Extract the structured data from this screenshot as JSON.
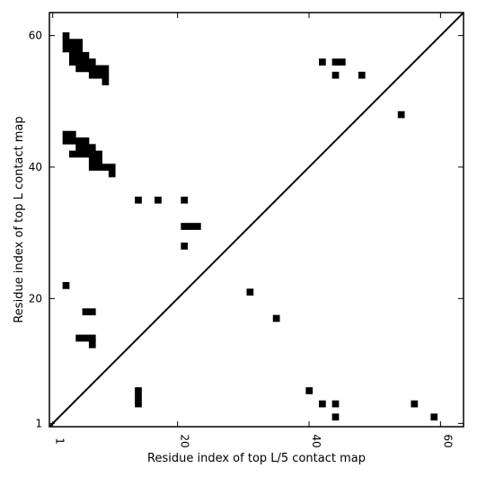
{
  "chart_data": {
    "type": "heatmap",
    "title": "",
    "xlabel": "Residue index of top L/5 contact map",
    "ylabel": "Residue index of top L contact map",
    "xlim": [
      0.5,
      63.5
    ],
    "ylim": [
      0.5,
      63.5
    ],
    "xticks": [
      1,
      20,
      40,
      60
    ],
    "yticks": [
      1,
      20,
      40,
      60
    ],
    "diagonal": true,
    "cell_color": "#000000",
    "upper_cells": [
      [
        3,
        60
      ],
      [
        3,
        59
      ],
      [
        4,
        59
      ],
      [
        5,
        59
      ],
      [
        3,
        58
      ],
      [
        4,
        58
      ],
      [
        5,
        58
      ],
      [
        4,
        57
      ],
      [
        5,
        57
      ],
      [
        6,
        57
      ],
      [
        4,
        56
      ],
      [
        5,
        56
      ],
      [
        6,
        56
      ],
      [
        7,
        56
      ],
      [
        5,
        55
      ],
      [
        6,
        55
      ],
      [
        7,
        55
      ],
      [
        8,
        55
      ],
      [
        9,
        55
      ],
      [
        7,
        54
      ],
      [
        8,
        54
      ],
      [
        9,
        54
      ],
      [
        9,
        53
      ],
      [
        3,
        45
      ],
      [
        4,
        45
      ],
      [
        3,
        44
      ],
      [
        4,
        44
      ],
      [
        5,
        44
      ],
      [
        6,
        44
      ],
      [
        5,
        43
      ],
      [
        6,
        43
      ],
      [
        7,
        43
      ],
      [
        4,
        42
      ],
      [
        5,
        42
      ],
      [
        6,
        42
      ],
      [
        7,
        42
      ],
      [
        8,
        42
      ],
      [
        7,
        41
      ],
      [
        8,
        41
      ],
      [
        7,
        40
      ],
      [
        8,
        40
      ],
      [
        9,
        40
      ],
      [
        10,
        40
      ],
      [
        10,
        39
      ],
      [
        14,
        35
      ],
      [
        17,
        35
      ],
      [
        21,
        35
      ],
      [
        21,
        31
      ],
      [
        22,
        31
      ],
      [
        23,
        31
      ],
      [
        21,
        28
      ],
      [
        3,
        22
      ],
      [
        6,
        18
      ],
      [
        7,
        18
      ],
      [
        5,
        14
      ],
      [
        6,
        14
      ],
      [
        7,
        14
      ],
      [
        7,
        13
      ],
      [
        31,
        21
      ],
      [
        35,
        17
      ],
      [
        42,
        56
      ],
      [
        44,
        56
      ],
      [
        45,
        56
      ],
      [
        44,
        54
      ],
      [
        48,
        54
      ],
      [
        54,
        48
      ]
    ],
    "lower_cells": [
      [
        14,
        6
      ],
      [
        14,
        5
      ],
      [
        14,
        4
      ],
      [
        40,
        6
      ],
      [
        42,
        4
      ],
      [
        44,
        4
      ],
      [
        44,
        2
      ],
      [
        56,
        4
      ],
      [
        59,
        2
      ]
    ]
  }
}
